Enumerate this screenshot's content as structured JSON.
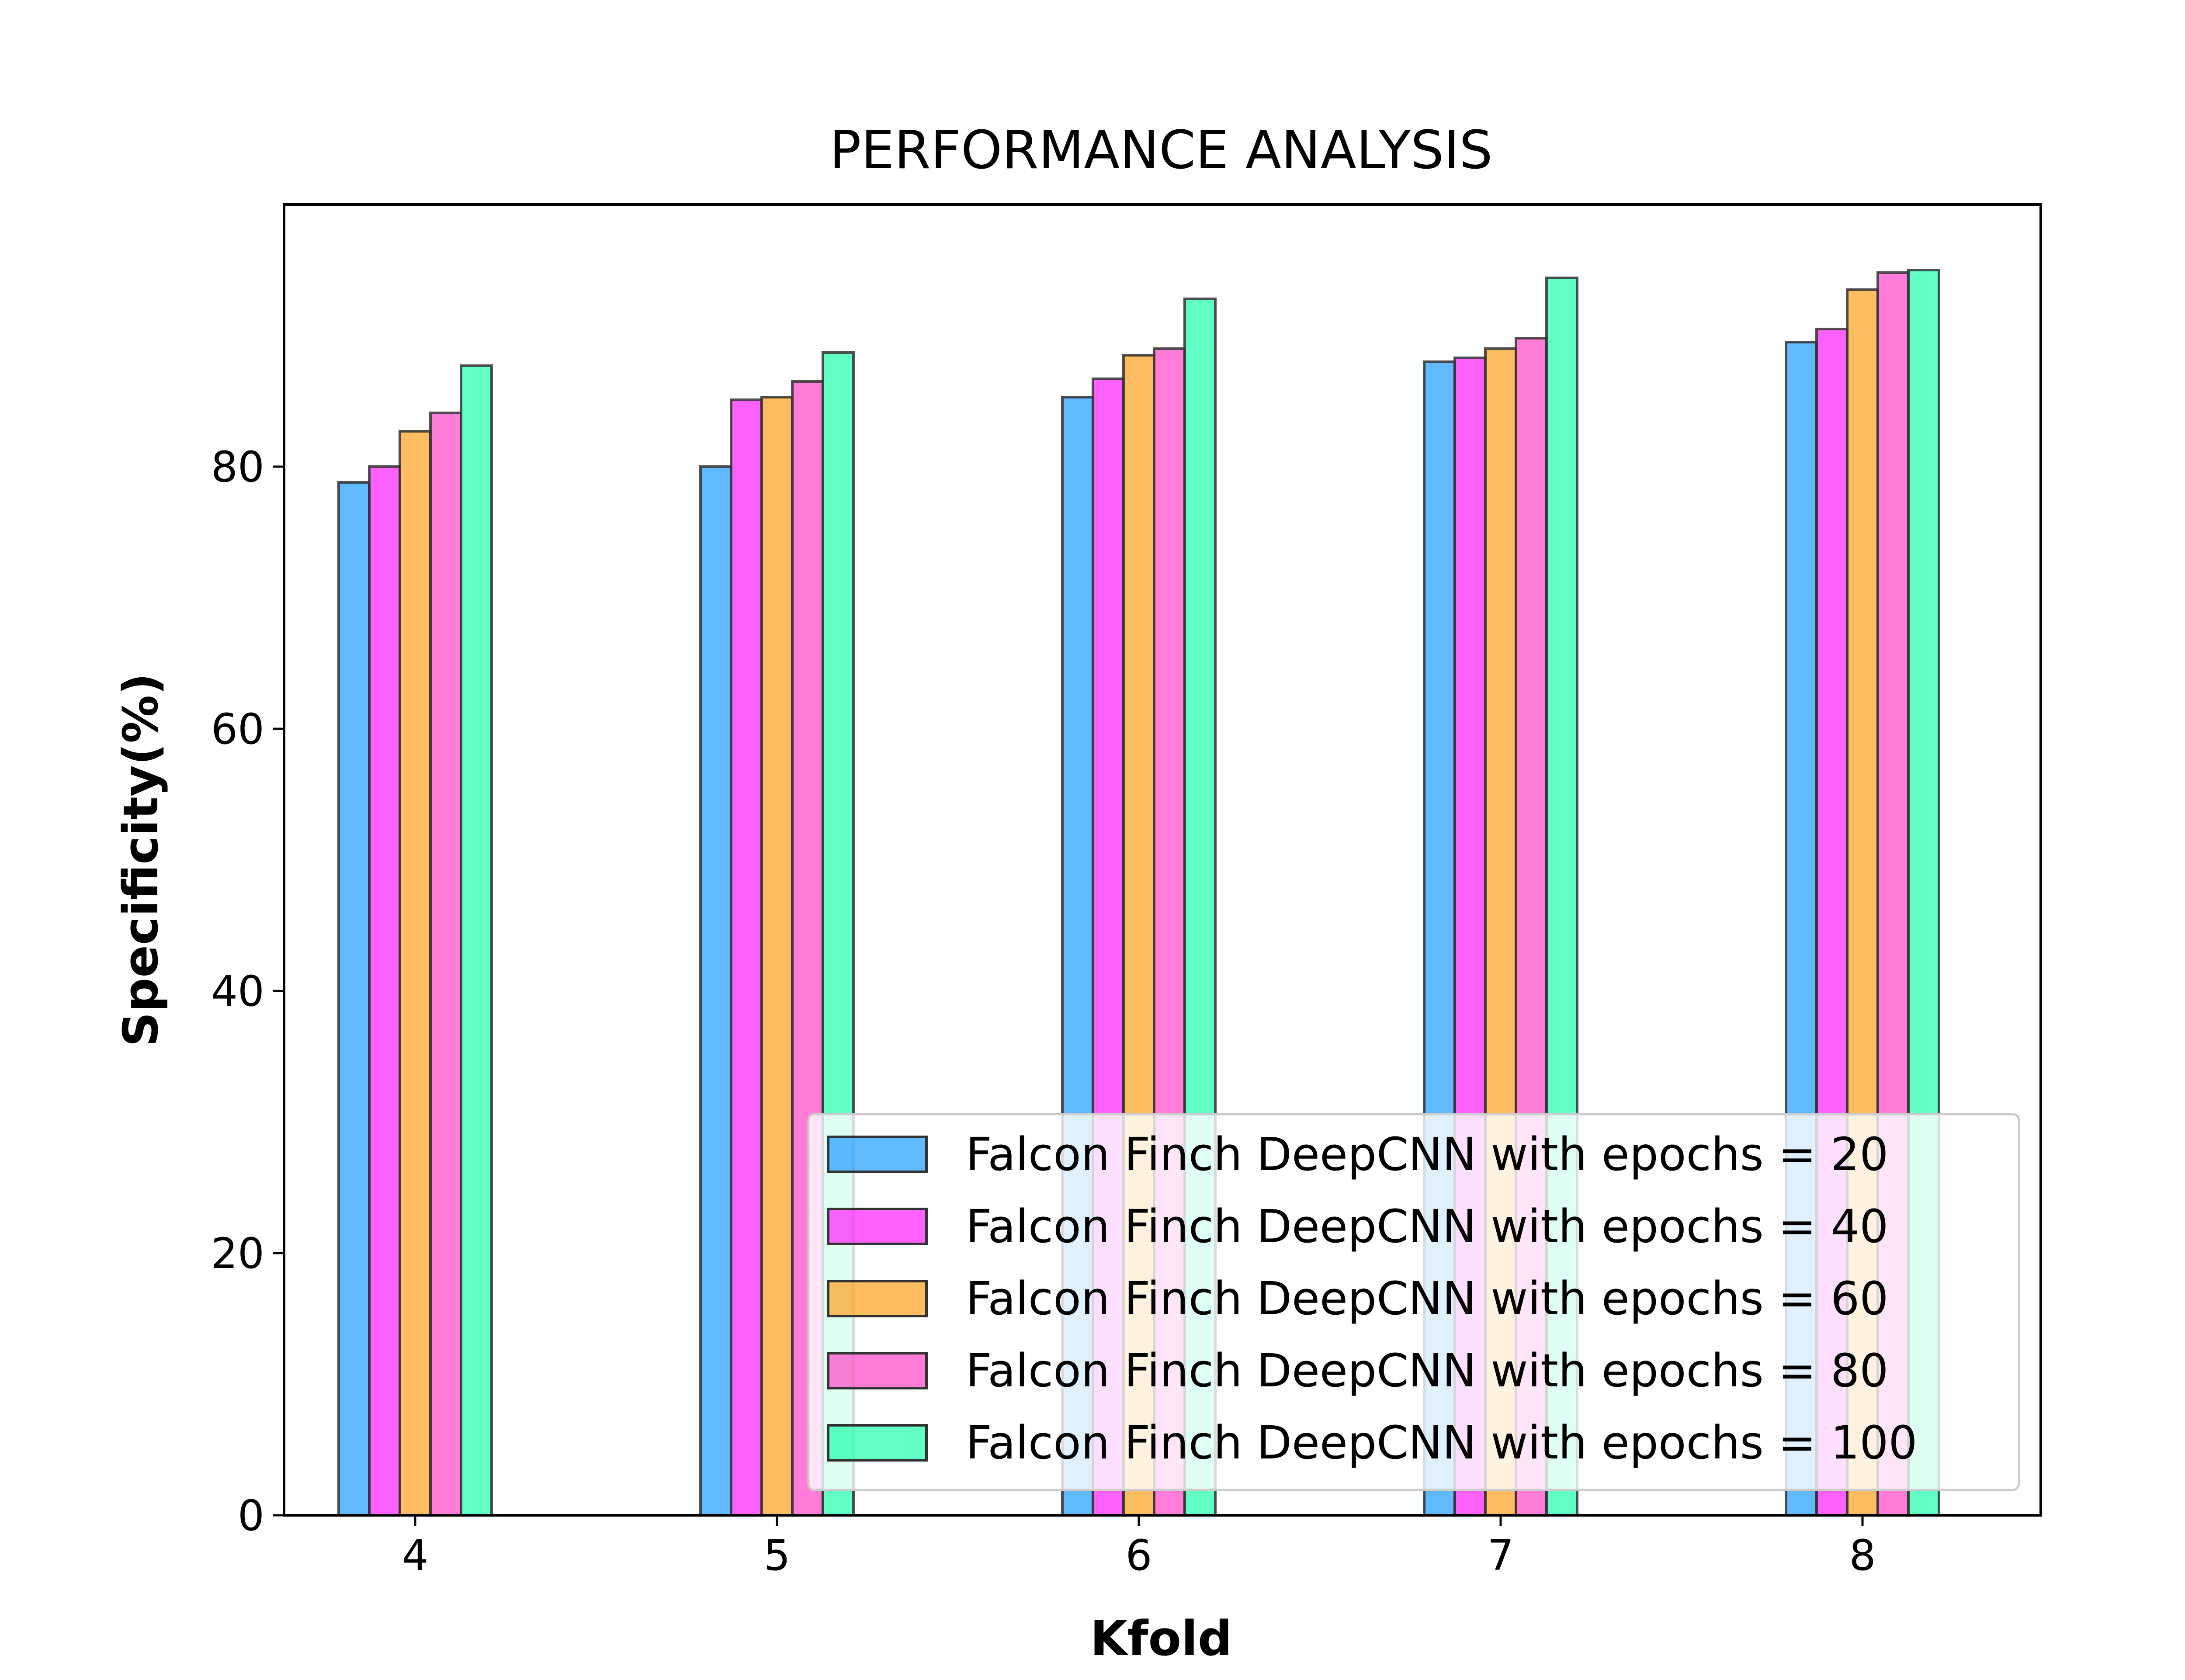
{
  "chart_data": {
    "type": "bar",
    "title": "PERFORMANCE ANALYSIS",
    "xlabel": "Kfold",
    "ylabel": "Specificity(%)",
    "categories": [
      "4",
      "5",
      "6",
      "7",
      "8"
    ],
    "ylim": [
      0,
      100
    ],
    "yticks": [
      0,
      20,
      40,
      60,
      80
    ],
    "grid": false,
    "legend_position": "lower-right",
    "series": [
      {
        "name": "Falcon Finch DeepCNN with epochs = 20",
        "color": "#1E9BFF",
        "values": [
          78.8,
          80.0,
          85.3,
          88.0,
          89.5
        ]
      },
      {
        "name": "Falcon Finch DeepCNN with epochs = 40",
        "color": "#FF1EFF",
        "values": [
          80.0,
          85.1,
          86.7,
          88.3,
          90.5
        ]
      },
      {
        "name": "Falcon Finch DeepCNN with epochs = 60",
        "color": "#FFA01E",
        "values": [
          82.7,
          85.3,
          88.5,
          89.0,
          93.5
        ]
      },
      {
        "name": "Falcon Finch DeepCNN with epochs = 80",
        "color": "#FF46C8",
        "values": [
          84.1,
          86.5,
          89.0,
          89.8,
          94.8
        ]
      },
      {
        "name": "Falcon Finch DeepCNN with epochs = 100",
        "color": "#1EFFAA",
        "values": [
          87.7,
          88.7,
          92.8,
          94.4,
          95.0
        ]
      }
    ]
  }
}
